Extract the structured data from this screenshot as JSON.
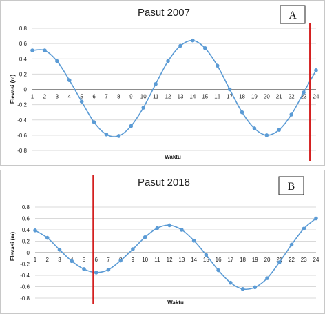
{
  "chart_data": [
    {
      "type": "line",
      "title": "Pasut 2007",
      "panel_letter": "A",
      "xlabel": "Waktu",
      "ylabel": "Elevasi (m)",
      "x": [
        1,
        2,
        3,
        4,
        5,
        6,
        7,
        8,
        9,
        10,
        11,
        12,
        13,
        14,
        15,
        16,
        17,
        18,
        19,
        20,
        21,
        22,
        23,
        24
      ],
      "y": [
        0.51,
        0.51,
        0.37,
        0.12,
        -0.16,
        -0.43,
        -0.59,
        -0.61,
        -0.48,
        -0.24,
        0.07,
        0.37,
        0.57,
        0.64,
        0.54,
        0.31,
        0.0,
        -0.3,
        -0.51,
        -0.6,
        -0.53,
        -0.33,
        -0.04,
        0.25
      ],
      "ylim": [
        -0.8,
        0.8
      ],
      "yticks": [
        "0.8",
        "0.6",
        "0.4",
        "0.2",
        "0",
        "-0.2",
        "-0.4",
        "-0.6",
        "-0.8"
      ],
      "xticks": [
        "1",
        "2",
        "3",
        "4",
        "5",
        "6",
        "7",
        "8",
        "9",
        "10",
        "11",
        "12",
        "13",
        "14",
        "15",
        "16",
        "17",
        "18",
        "19",
        "20",
        "21",
        "22",
        "23",
        "24"
      ],
      "marker_line_x": 23.5,
      "grid": true,
      "colors": {
        "series": "#5b9bd5",
        "marker_line": "#d42020"
      }
    },
    {
      "type": "line",
      "title": "Pasut 2018",
      "panel_letter": "B",
      "xlabel": "Waktu",
      "ylabel": "Elevasi (m)",
      "x": [
        1,
        2,
        3,
        4,
        5,
        6,
        7,
        8,
        9,
        10,
        11,
        12,
        13,
        14,
        15,
        16,
        17,
        18,
        19,
        20,
        21,
        22,
        23,
        24
      ],
      "y": [
        0.39,
        0.26,
        0.05,
        -0.15,
        -0.29,
        -0.35,
        -0.3,
        -0.14,
        0.06,
        0.27,
        0.43,
        0.48,
        0.4,
        0.21,
        -0.04,
        -0.31,
        -0.53,
        -0.64,
        -0.61,
        -0.45,
        -0.17,
        0.14,
        0.42,
        0.6
      ],
      "ylim": [
        -0.8,
        0.8
      ],
      "yticks": [
        "0.8",
        "0.6",
        "0.4",
        "0.2",
        "0",
        "-0.2",
        "-0.4",
        "-0.6",
        "-0.8"
      ],
      "xticks": [
        "1",
        "2",
        "3",
        "4",
        "5",
        "6",
        "7",
        "8",
        "9",
        "10",
        "11",
        "12",
        "13",
        "14",
        "15",
        "16",
        "17",
        "18",
        "19",
        "20",
        "21",
        "22",
        "23",
        "24"
      ],
      "marker_line_x": 5.75,
      "grid": true,
      "colors": {
        "series": "#5b9bd5",
        "marker_line": "#d42020"
      }
    }
  ]
}
